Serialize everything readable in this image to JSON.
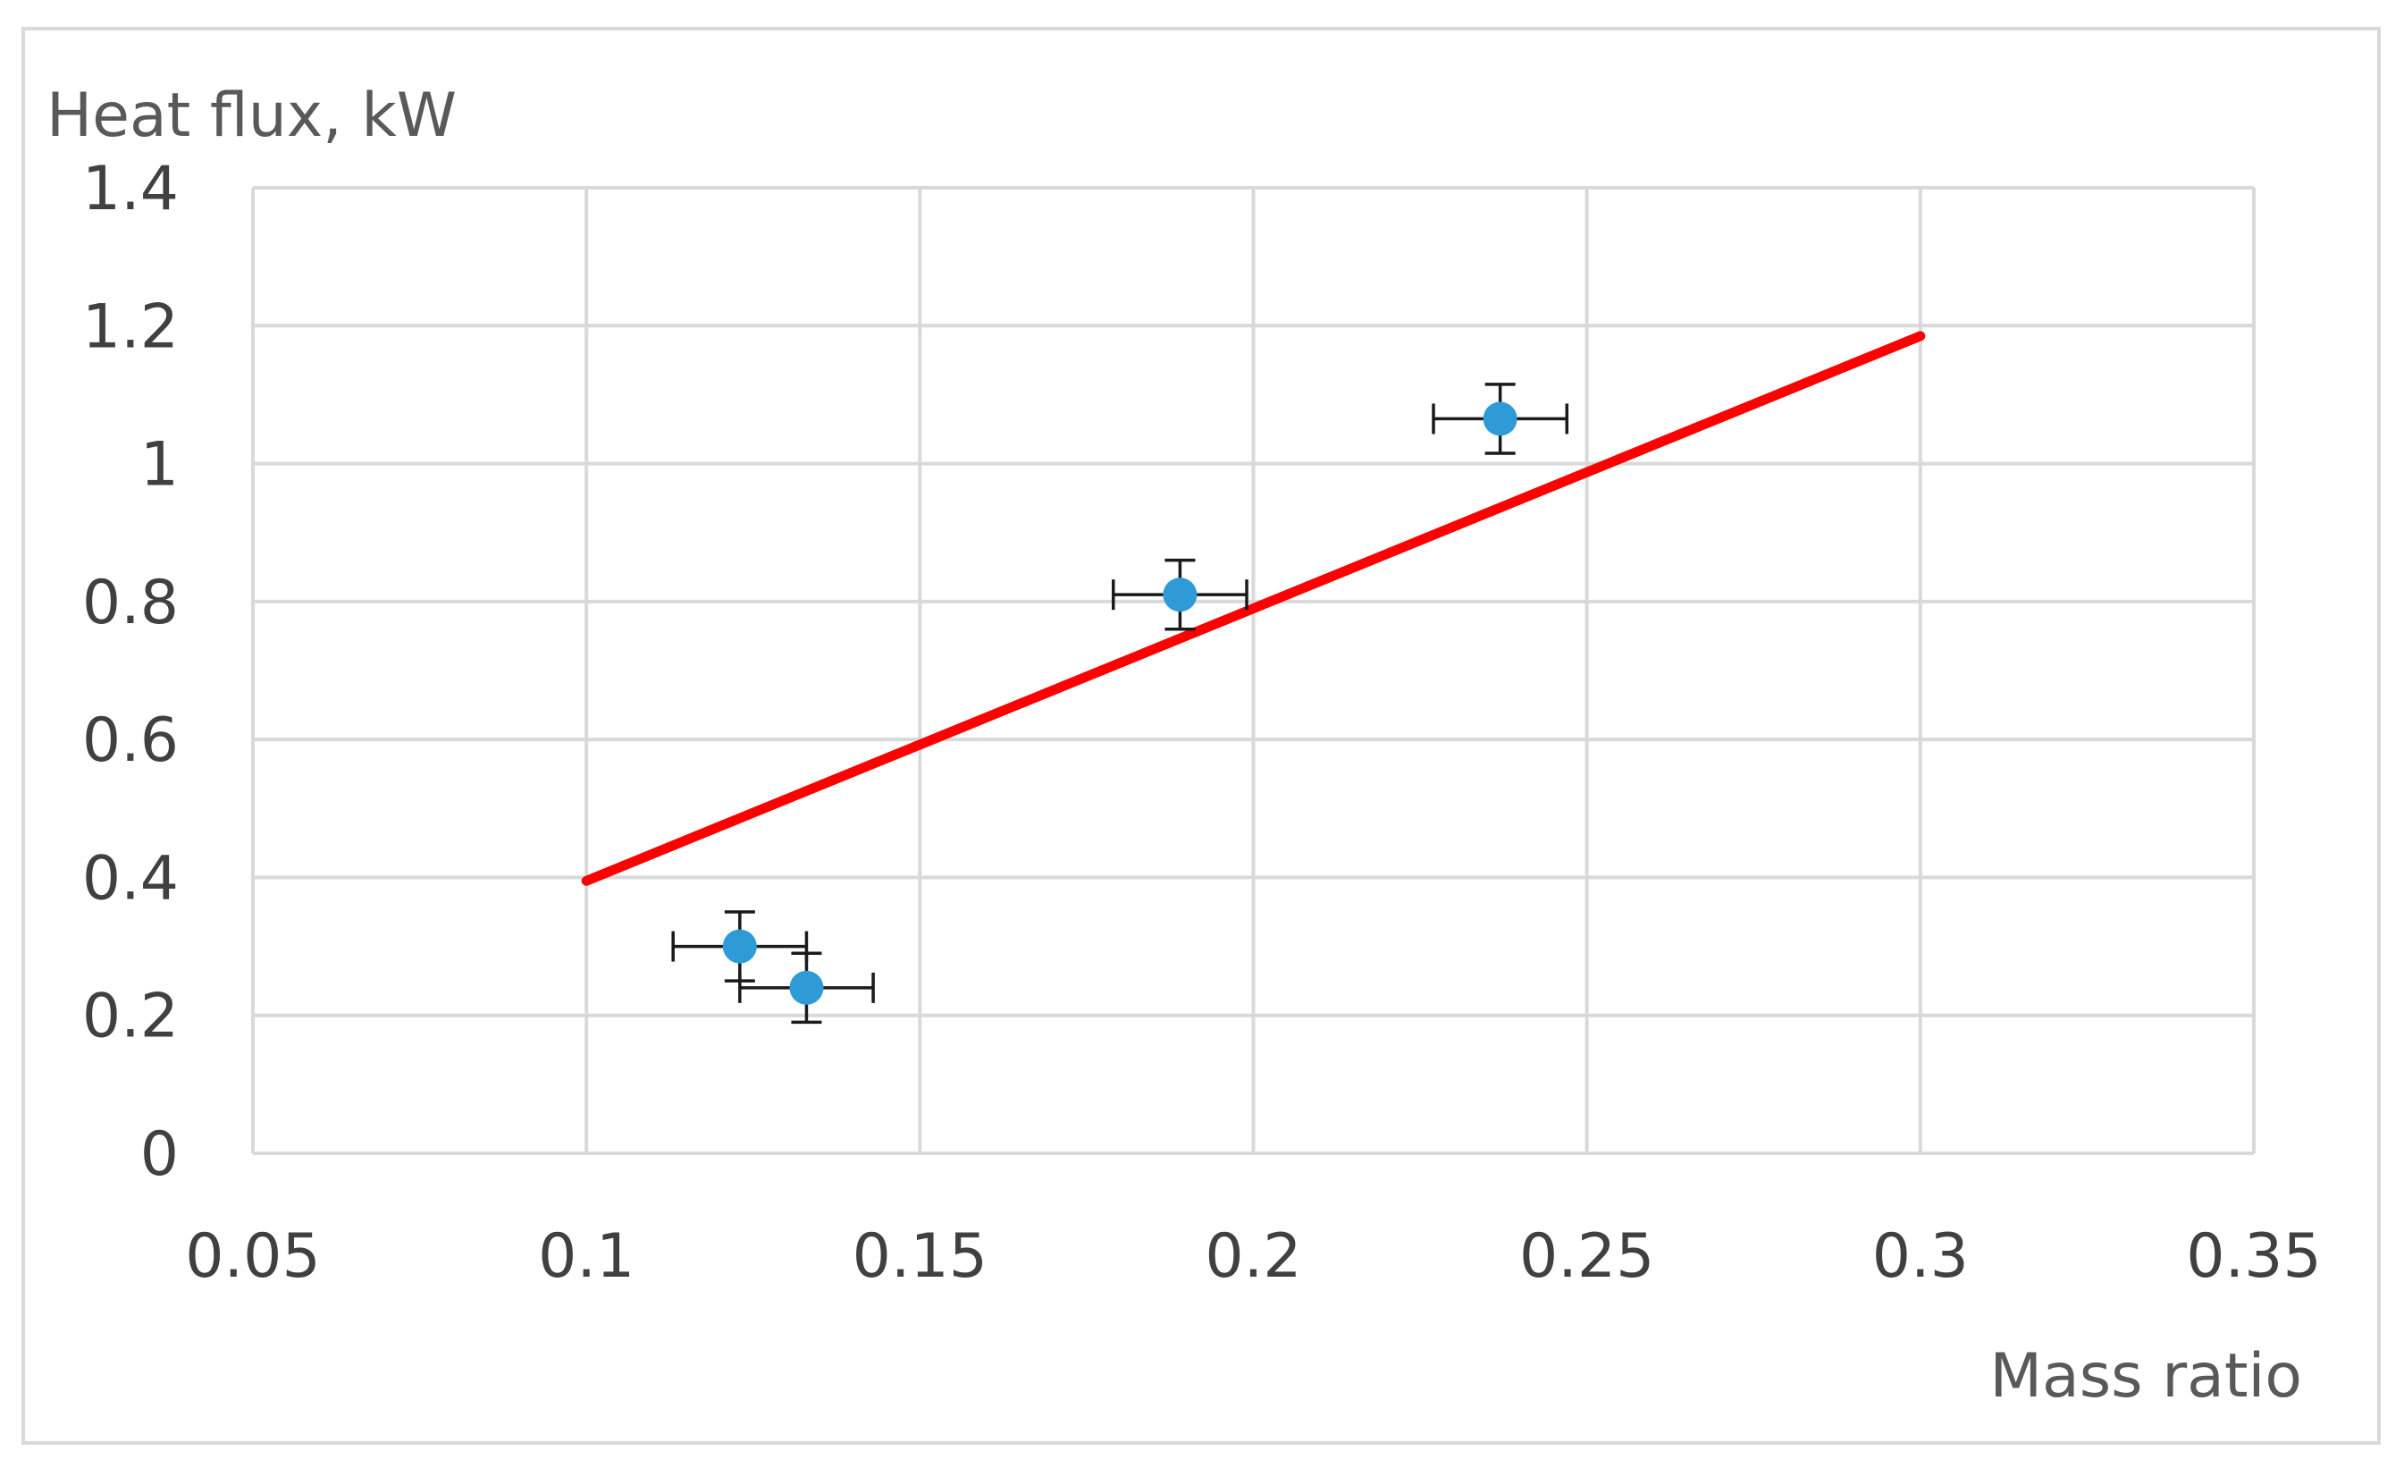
{
  "chart_data": {
    "type": "scatter",
    "xlabel": "Mass ratio",
    "ylabel": "Heat flux, kW",
    "xlim": [
      0.05,
      0.35
    ],
    "ylim": [
      0,
      1.4
    ],
    "xticks": [
      0.05,
      0.1,
      0.15,
      0.2,
      0.25,
      0.3,
      0.35
    ],
    "yticks": [
      0,
      0.2,
      0.4,
      0.6,
      0.8,
      1,
      1.2,
      1.4
    ],
    "xtick_labels": [
      "0.05",
      "0.1",
      "0.15",
      "0.2",
      "0.25",
      "0.3",
      "0.35"
    ],
    "ytick_labels": [
      "0",
      "0.2",
      "0.4",
      "0.6",
      "0.8",
      "1",
      "1.2",
      "1.4"
    ],
    "grid": true,
    "legend": "none",
    "series": [
      {
        "type": "scatter",
        "color": "#2e9bd6",
        "points": [
          {
            "x": 0.123,
            "y": 0.3,
            "xerr": 0.01,
            "yerr": 0.05
          },
          {
            "x": 0.133,
            "y": 0.24,
            "xerr": 0.01,
            "yerr": 0.05
          },
          {
            "x": 0.189,
            "y": 0.81,
            "xerr": 0.01,
            "yerr": 0.05
          },
          {
            "x": 0.237,
            "y": 1.065,
            "xerr": 0.01,
            "yerr": 0.05
          }
        ]
      },
      {
        "type": "line",
        "color": "#ff0000",
        "x": [
          0.1,
          0.3
        ],
        "y": [
          0.395,
          1.185
        ]
      }
    ]
  }
}
